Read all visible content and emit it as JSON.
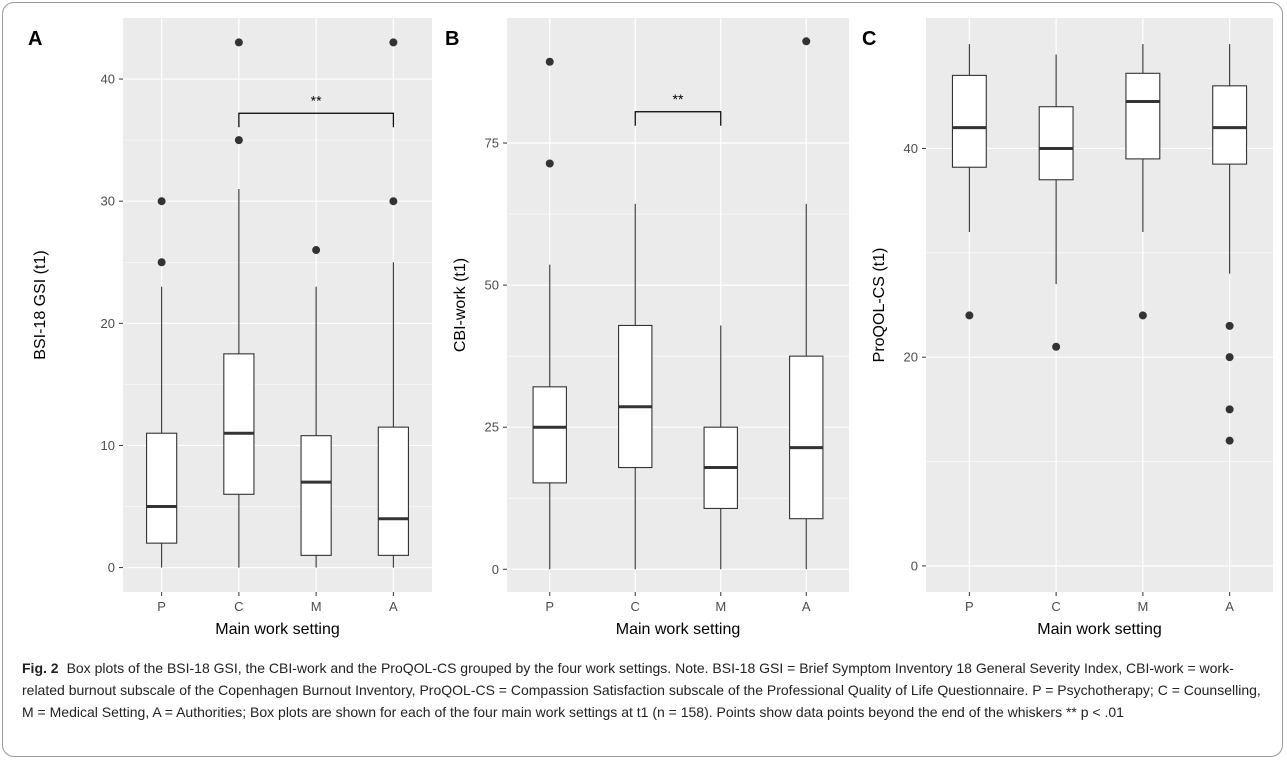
{
  "caption": {
    "label": "Fig. 2",
    "text": "Box plots of the BSI-18 GSI, the CBI-work and the ProQOL-CS grouped by the four work settings. Note. BSI-18 GSI = Brief Symptom Inventory 18 General Severity Index, CBI-work = work-related burnout subscale of the Copenhagen Burnout Inventory, ProQOL-CS = Compassion Satisfaction subscale of the Professional Quality of Life Questionnaire. P = Psychotherapy; C = Counselling, M = Medical Setting, A = Authorities; Box plots are shown for each of the four main work settings at t1 (n = 158). Points show data points beyond the end of the whiskers ** p < .01"
  },
  "chart_data": [
    {
      "type": "boxplot",
      "panel": "A",
      "categories": [
        "P",
        "C",
        "M",
        "A"
      ],
      "xlabel": "Main work setting",
      "ylabel": "BSI-18 GSI (t1)",
      "ylim": [
        -2,
        45
      ],
      "yticks": [
        0,
        10,
        20,
        30,
        40
      ],
      "boxes": [
        {
          "min": 0,
          "q1": 2,
          "median": 5,
          "q3": 11,
          "max": 23,
          "outliers": [
            25,
            30
          ]
        },
        {
          "min": 0,
          "q1": 6,
          "median": 11,
          "q3": 17.5,
          "max": 31,
          "outliers": [
            35,
            43
          ]
        },
        {
          "min": 0,
          "q1": 1,
          "median": 7,
          "q3": 10.8,
          "max": 23,
          "outliers": [
            26
          ]
        },
        {
          "min": 0,
          "q1": 1,
          "median": 4,
          "q3": 11.5,
          "max": 25,
          "outliers": [
            30,
            43
          ]
        }
      ],
      "significance": {
        "from": "C",
        "to": "A",
        "y": 37.2,
        "label": "**"
      }
    },
    {
      "type": "boxplot",
      "panel": "B",
      "categories": [
        "P",
        "C",
        "M",
        "A"
      ],
      "xlabel": "Main work setting",
      "ylabel": "CBI-work (t1)",
      "ylim": [
        -4,
        97
      ],
      "yticks": [
        0,
        25,
        50,
        75
      ],
      "boxes": [
        {
          "min": 0,
          "q1": 15.2,
          "median": 25,
          "q3": 32.1,
          "max": 53.6,
          "outliers": [
            71.4,
            89.3
          ]
        },
        {
          "min": 0,
          "q1": 17.9,
          "median": 28.6,
          "q3": 42.9,
          "max": 64.3,
          "outliers": []
        },
        {
          "min": 0,
          "q1": 10.7,
          "median": 17.9,
          "q3": 25,
          "max": 42.9,
          "outliers": []
        },
        {
          "min": 0,
          "q1": 8.9,
          "median": 21.4,
          "q3": 37.5,
          "max": 64.3,
          "outliers": [
            92.9
          ]
        }
      ],
      "significance": {
        "from": "C",
        "to": "M",
        "y": 80.5,
        "label": "**"
      }
    },
    {
      "type": "boxplot",
      "panel": "C",
      "categories": [
        "P",
        "C",
        "M",
        "A"
      ],
      "xlabel": "Main work setting",
      "ylabel": "ProQOL-CS (t1)",
      "ylim": [
        -2.5,
        52.5
      ],
      "yticks": [
        0,
        20,
        40
      ],
      "boxes": [
        {
          "min": 32,
          "q1": 38.2,
          "median": 42,
          "q3": 47,
          "max": 50,
          "outliers": [
            24
          ]
        },
        {
          "min": 27,
          "q1": 37,
          "median": 40,
          "q3": 44,
          "max": 49,
          "outliers": [
            21
          ]
        },
        {
          "min": 32,
          "q1": 39,
          "median": 44.5,
          "q3": 47.2,
          "max": 50,
          "outliers": [
            24
          ]
        },
        {
          "min": 28,
          "q1": 38.5,
          "median": 42,
          "q3": 46,
          "max": 50,
          "outliers": [
            23,
            20,
            15,
            12
          ]
        }
      ],
      "significance": null
    }
  ]
}
